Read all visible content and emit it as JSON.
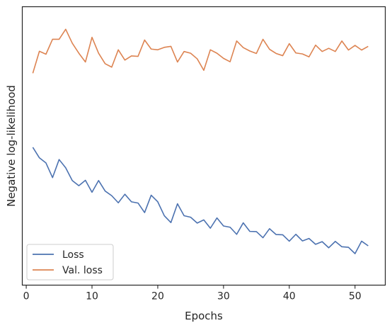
{
  "chart_data": {
    "type": "line",
    "title": "",
    "xlabel": "Epochs",
    "ylabel": "Negative log-likelihood",
    "xlim": [
      -0.6,
      54.6
    ],
    "ylim": [
      0,
      1
    ],
    "x_ticks": [
      0,
      10,
      20,
      30,
      40,
      50
    ],
    "y_ticks": [],
    "y_tick_labels_shown": false,
    "grid": false,
    "legend_position": "lower-left",
    "x": [
      1,
      2,
      3,
      4,
      5,
      6,
      7,
      8,
      9,
      10,
      11,
      12,
      13,
      14,
      15,
      16,
      17,
      18,
      19,
      20,
      21,
      22,
      23,
      24,
      25,
      26,
      27,
      28,
      29,
      30,
      31,
      32,
      33,
      34,
      35,
      36,
      37,
      38,
      39,
      40,
      41,
      42,
      43,
      44,
      45,
      46,
      47,
      48,
      49,
      50,
      51,
      52
    ],
    "series": [
      {
        "name": "Loss",
        "color": "#4c72b0",
        "values": [
          0.477,
          0.434,
          0.413,
          0.353,
          0.427,
          0.393,
          0.341,
          0.32,
          0.342,
          0.293,
          0.341,
          0.298,
          0.279,
          0.25,
          0.285,
          0.254,
          0.249,
          0.21,
          0.281,
          0.254,
          0.197,
          0.169,
          0.246,
          0.197,
          0.191,
          0.167,
          0.18,
          0.146,
          0.188,
          0.155,
          0.15,
          0.121,
          0.168,
          0.133,
          0.132,
          0.107,
          0.144,
          0.12,
          0.119,
          0.093,
          0.121,
          0.094,
          0.104,
          0.08,
          0.091,
          0.066,
          0.092,
          0.07,
          0.068,
          0.042,
          0.093,
          0.074
        ]
      },
      {
        "name": "Val. loss",
        "color": "#dd8452",
        "values": [
          0.78,
          0.87,
          0.858,
          0.919,
          0.919,
          0.96,
          0.903,
          0.862,
          0.826,
          0.927,
          0.862,
          0.819,
          0.805,
          0.876,
          0.834,
          0.851,
          0.849,
          0.916,
          0.879,
          0.876,
          0.886,
          0.89,
          0.826,
          0.869,
          0.862,
          0.839,
          0.792,
          0.876,
          0.862,
          0.841,
          0.827,
          0.912,
          0.885,
          0.871,
          0.861,
          0.919,
          0.878,
          0.861,
          0.852,
          0.901,
          0.863,
          0.859,
          0.847,
          0.895,
          0.869,
          0.882,
          0.869,
          0.912,
          0.875,
          0.894,
          0.875,
          0.89
        ]
      }
    ]
  }
}
